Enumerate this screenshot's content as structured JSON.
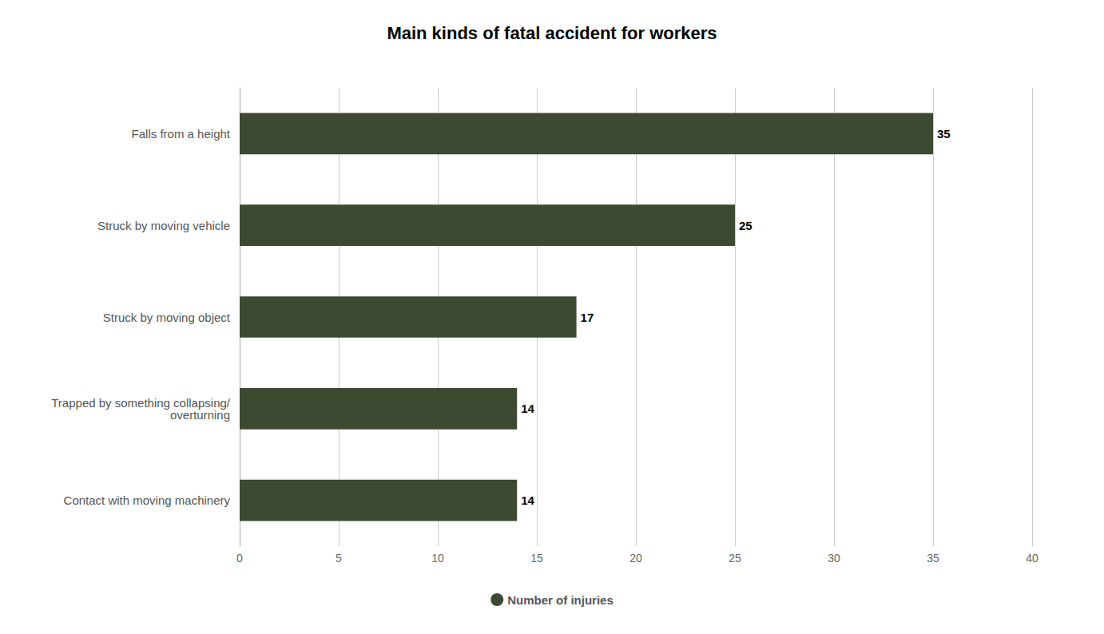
{
  "chart_data": {
    "type": "bar",
    "orientation": "horizontal",
    "title": "Main kinds of fatal accident for workers",
    "categories": [
      "Contact with moving machinery",
      "Trapped by something collapsing/\noverturning",
      "Struck by moving object",
      "Struck by moving vehicle",
      "Falls from a height"
    ],
    "series": [
      {
        "name": "Number of injuries",
        "color": "#3b4a30",
        "values": [
          14,
          14,
          17,
          25,
          35
        ]
      }
    ],
    "xlim": [
      0,
      40
    ],
    "xticks": [
      0,
      5,
      10,
      15,
      20,
      25,
      30,
      35,
      40
    ],
    "grid": true,
    "data_labels": true,
    "legend": "bottom"
  }
}
